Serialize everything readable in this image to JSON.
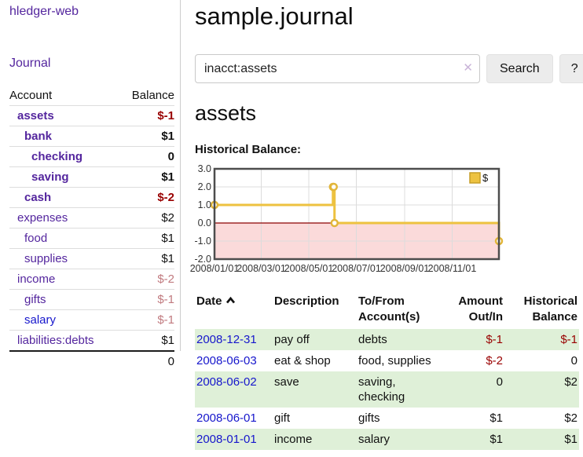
{
  "app": {
    "title": "hledger-web"
  },
  "sidebar": {
    "nav": {
      "journal": "Journal"
    },
    "accounts": {
      "header": {
        "account": "Account",
        "balance": "Balance"
      },
      "rows": [
        {
          "name": "assets",
          "balance": "$-1"
        },
        {
          "name": "bank",
          "balance": "$1"
        },
        {
          "name": "checking",
          "balance": "0"
        },
        {
          "name": "saving",
          "balance": "$1"
        },
        {
          "name": "cash",
          "balance": "$-2"
        },
        {
          "name": "expenses",
          "balance": "$2"
        },
        {
          "name": "food",
          "balance": "$1"
        },
        {
          "name": "supplies",
          "balance": "$1"
        },
        {
          "name": "income",
          "balance": "$-2"
        },
        {
          "name": "gifts",
          "balance": "$-1"
        },
        {
          "name": "salary",
          "balance": "$-1"
        },
        {
          "name": "liabilities:debts",
          "balance": "$1"
        }
      ],
      "total": "0"
    }
  },
  "main": {
    "title": "sample.journal",
    "search": {
      "value": "inacct:assets",
      "clear": "✕",
      "button": "Search",
      "help": "?"
    },
    "account_heading": "assets",
    "chart_heading": "Historical Balance:"
  },
  "chart_data": {
    "type": "line",
    "subtype": "step",
    "title": "Historical Balance",
    "x_range": [
      "2008-01-01",
      "2008-12-31"
    ],
    "ylim": [
      -2,
      3
    ],
    "grid": true,
    "legend": {
      "position": "top-right",
      "label": "$"
    },
    "series": [
      {
        "name": "$",
        "points": [
          {
            "date": "2008-01-01",
            "value": 1
          },
          {
            "date": "2008-06-01",
            "value": 2
          },
          {
            "date": "2008-06-02",
            "value": 2
          },
          {
            "date": "2008-06-03",
            "value": 0
          },
          {
            "date": "2008-12-31",
            "value": -1
          }
        ]
      }
    ],
    "xticks": [
      {
        "date": "2008-01-01",
        "label": "2008/01/01"
      },
      {
        "date": "2008-03-01",
        "label": "2008/03/01"
      },
      {
        "date": "2008-05-01",
        "label": "2008/05/01"
      },
      {
        "date": "2008-07-01",
        "label": "2008/07/01"
      },
      {
        "date": "2008-09-01",
        "label": "2008/09/01"
      },
      {
        "date": "2008-11-01",
        "label": "2008/11/01"
      }
    ],
    "yticks": [
      {
        "value": 3,
        "label": "3.0"
      },
      {
        "value": 2,
        "label": "2.0"
      },
      {
        "value": 1,
        "label": "1.0"
      },
      {
        "value": 0,
        "label": "0.0"
      },
      {
        "value": -1,
        "label": "-1.0"
      },
      {
        "value": -2,
        "label": "-2.0"
      }
    ],
    "colors": {
      "line": "#edc240",
      "marker_stroke": "#e2b63a",
      "marker_fill": "#ffffff",
      "negative_fill": "#fbdada",
      "zero_line": "#8b0000",
      "border": "#4d4d4d",
      "grid": "#dcdcdc",
      "tick_text": "#333333"
    }
  },
  "register": {
    "headers": {
      "date": "Date",
      "description": "Description",
      "tofrom": "To/From Account(s)",
      "amount": "Amount Out/In",
      "balance": "Historical Balance"
    },
    "rows": [
      {
        "date": "2008-12-31",
        "description": "pay off",
        "accounts": "debts",
        "amount": "$-1",
        "balance": "$-1"
      },
      {
        "date": "2008-06-03",
        "description": "eat & shop",
        "accounts": "food, supplies",
        "amount": "$-2",
        "balance": "0"
      },
      {
        "date": "2008-06-02",
        "description": "save",
        "accounts": "saving, checking",
        "amount": "0",
        "balance": "$2"
      },
      {
        "date": "2008-06-01",
        "description": "gift",
        "accounts": "gifts",
        "amount": "$1",
        "balance": "$2"
      },
      {
        "date": "2008-01-01",
        "description": "income",
        "accounts": "salary",
        "amount": "$1",
        "balance": "$1"
      }
    ]
  }
}
